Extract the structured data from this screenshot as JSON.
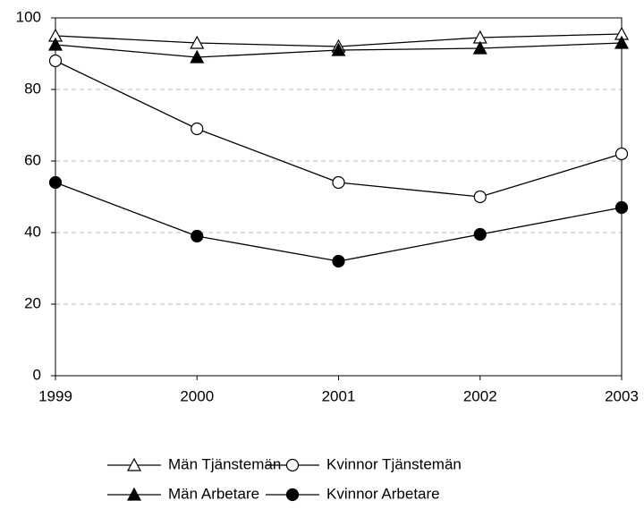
{
  "chart_data": {
    "type": "line",
    "x": [
      1999,
      2000,
      2001,
      2002,
      2003
    ],
    "xlim": [
      1999,
      2003
    ],
    "xticks": [
      1999,
      2000,
      2001,
      2002,
      2003
    ],
    "ylim": [
      0,
      100
    ],
    "yticks": [
      0,
      20,
      40,
      60,
      80,
      100
    ],
    "grid": true,
    "legend": "bottom",
    "series": [
      {
        "name": "Män Tjänstemän",
        "color": "#000000",
        "marker": "triangle",
        "marker_fill": "#ffffff",
        "values": [
          95,
          93,
          92,
          94.5,
          95.5
        ]
      },
      {
        "name": "Kvinnor Tjänstemän",
        "color": "#000000",
        "marker": "circle",
        "marker_fill": "#ffffff",
        "values": [
          88,
          69,
          54,
          50,
          62
        ]
      },
      {
        "name": "Män Arbetare",
        "color": "#000000",
        "marker": "triangle",
        "marker_fill": "#000000",
        "values": [
          92.5,
          89,
          91,
          91.5,
          93
        ]
      },
      {
        "name": "Kvinnor Arbetare",
        "color": "#000000",
        "marker": "circle",
        "marker_fill": "#000000",
        "values": [
          54,
          39,
          32,
          39.5,
          47
        ]
      }
    ]
  }
}
